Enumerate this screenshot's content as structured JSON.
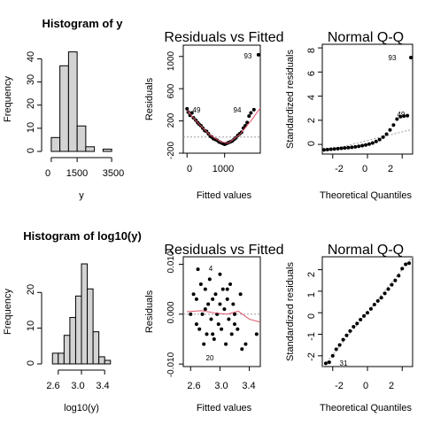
{
  "panels": {
    "hist_y": {
      "title": "Histogram of y",
      "xlabel": "y",
      "ylabel": "Frequency",
      "xticks": [
        "0",
        "1500",
        "3500"
      ],
      "yticks": [
        "0",
        "10",
        "20",
        "30",
        "40"
      ]
    },
    "rvf_1": {
      "title": "Residuals vs Fitted",
      "xlabel": "Fitted values",
      "ylabel": "Residuals",
      "xticks": [
        "0",
        "1000"
      ],
      "yticks": [
        "-200",
        "200",
        "600",
        "1000"
      ],
      "labels": [
        "93",
        "94",
        "49"
      ]
    },
    "qq_1": {
      "title": "Normal Q-Q",
      "xlabel": "Theoretical Quantiles",
      "ylabel": "Standardized residuals",
      "xticks": [
        "-2",
        "0",
        "2"
      ],
      "yticks": [
        "0",
        "2",
        "4",
        "6",
        "8"
      ],
      "labels": [
        "93",
        "49"
      ]
    },
    "hist_log": {
      "title": "Histogram of log10(y)",
      "xlabel": "log10(y)",
      "ylabel": "Frequency",
      "xticks": [
        "2.6",
        "3.0",
        "3.4"
      ],
      "yticks": [
        "0",
        "10",
        "20"
      ]
    },
    "rvf_2": {
      "title": "Residuals vs Fitted",
      "xlabel": "Fitted values",
      "ylabel": "Residuals",
      "xticks": [
        "2.6",
        "3.0",
        "3.4"
      ],
      "yticks": [
        "-0.010",
        "0.000",
        "0.010"
      ],
      "labels": [
        "4",
        "20"
      ]
    },
    "qq_2": {
      "title": "Normal Q-Q",
      "xlabel": "Theoretical Quantiles",
      "ylabel": "Standardized residuals",
      "xticks": [
        "-2",
        "0",
        "2"
      ],
      "yticks": [
        "-2",
        "-1",
        "0",
        "1",
        "2"
      ],
      "labels": [
        "31"
      ]
    }
  },
  "colors": {
    "bar_fill": "#d3d3d3",
    "smooth_line": "#df536b",
    "reference_line": "#9e9e9e",
    "points": "#000000"
  },
  "chart_data": [
    {
      "type": "bar",
      "title": "Histogram of y",
      "xlabel": "y",
      "ylabel": "Frequency",
      "bin_edges": [
        0,
        500,
        1000,
        1500,
        2000,
        2500,
        3000,
        3500
      ],
      "values": [
        6,
        37,
        43,
        11,
        2,
        0,
        1
      ],
      "xlim": [
        -200,
        3700
      ],
      "ylim": [
        0,
        44
      ]
    },
    {
      "type": "scatter",
      "title": "Residuals vs Fitted",
      "xlabel": "Fitted values",
      "ylabel": "Residuals",
      "xlim": [
        -100,
        1950
      ],
      "ylim": [
        -200,
        1140
      ],
      "x": [
        0,
        30,
        80,
        130,
        170,
        230,
        280,
        320,
        370,
        420,
        470,
        520,
        570,
        620,
        660,
        700,
        750,
        800,
        850,
        900,
        950,
        1000,
        1050,
        1100,
        1150,
        1200,
        1250,
        1300,
        1350,
        1400,
        1450,
        1500,
        1550,
        1600,
        1650,
        1700,
        1780,
        1900
      ],
      "y": [
        350,
        310,
        270,
        300,
        240,
        210,
        180,
        160,
        140,
        110,
        80,
        70,
        40,
        10,
        0,
        -20,
        -30,
        -40,
        -60,
        -70,
        -80,
        -90,
        -80,
        -70,
        -60,
        -50,
        -30,
        -10,
        20,
        40,
        60,
        110,
        140,
        180,
        260,
        300,
        340,
        1020
      ],
      "reference_y": 0,
      "smooth": {
        "x": [
          0,
          300,
          600,
          900,
          1100,
          1400,
          1700,
          1950
        ],
        "y": [
          330,
          170,
          30,
          -60,
          -75,
          30,
          200,
          360
        ]
      },
      "labeled_points": [
        {
          "label": "93",
          "x": 1900,
          "y": 1020
        },
        {
          "label": "94",
          "x": 1780,
          "y": 340
        },
        {
          "label": "49",
          "x": 30,
          "y": 310
        }
      ]
    },
    {
      "type": "scatter",
      "title": "Normal Q-Q",
      "xlabel": "Theoretical Quantiles",
      "ylabel": "Standardized residuals",
      "xlim": [
        -2.6,
        2.6
      ],
      "ylim": [
        -0.8,
        8.3
      ],
      "x": [
        -2.5,
        -2.3,
        -2.1,
        -1.9,
        -1.7,
        -1.5,
        -1.3,
        -1.1,
        -0.9,
        -0.7,
        -0.5,
        -0.3,
        -0.1,
        0.1,
        0.3,
        0.5,
        0.7,
        0.9,
        1.1,
        1.3,
        1.5,
        1.7,
        1.9,
        2.1,
        2.3,
        2.5
      ],
      "y": [
        -0.45,
        -0.42,
        -0.4,
        -0.38,
        -0.35,
        -0.32,
        -0.3,
        -0.27,
        -0.24,
        -0.2,
        -0.16,
        -0.1,
        -0.05,
        0.03,
        0.12,
        0.25,
        0.4,
        0.6,
        0.85,
        1.2,
        1.6,
        2.1,
        2.3,
        2.35,
        2.38,
        7.2
      ],
      "reference_line": {
        "x": [
          -2.6,
          2.6
        ],
        "y": [
          -0.6,
          1.25
        ]
      },
      "labeled_points": [
        {
          "label": "93",
          "x": 2.5,
          "y": 7.2
        },
        {
          "label": "49",
          "x": 2.35,
          "y": 2.38
        }
      ]
    },
    {
      "type": "bar",
      "title": "Histogram of log10(y)",
      "xlabel": "log10(y)",
      "ylabel": "Frequency",
      "bin_edges": [
        2.5,
        2.6,
        2.7,
        2.8,
        2.9,
        3.0,
        3.1,
        3.2,
        3.3,
        3.4,
        3.5
      ],
      "values": [
        3,
        3,
        8,
        13,
        19,
        28,
        21,
        9,
        2,
        1
      ],
      "xlim": [
        2.42,
        3.58
      ],
      "ylim": [
        0,
        28.5
      ]
    },
    {
      "type": "scatter",
      "title": "Residuals vs Fitted",
      "xlabel": "Fitted values",
      "ylabel": "Residuals",
      "xlim": [
        2.5,
        3.55
      ],
      "ylim": [
        -0.0105,
        0.0115
      ],
      "x": [
        2.6,
        2.64,
        2.68,
        2.7,
        2.72,
        2.74,
        2.76,
        2.78,
        2.8,
        2.82,
        2.84,
        2.86,
        2.88,
        2.9,
        2.92,
        2.94,
        2.96,
        2.98,
        3.0,
        3.02,
        3.04,
        3.06,
        3.08,
        3.1,
        3.12,
        3.14,
        3.16,
        3.18,
        3.2,
        3.24,
        3.28,
        3.3,
        3.35,
        3.5,
        2.68,
        2.8,
        2.9,
        3.0,
        3.1,
        3.2
      ],
      "y": [
        0.0,
        0.004,
        -0.002,
        0.009,
        -0.003,
        0.006,
        0.0,
        -0.006,
        0.005,
        -0.004,
        0.002,
        0.007,
        -0.001,
        0.003,
        -0.005,
        0.004,
        0.0,
        -0.002,
        0.008,
        -0.003,
        0.005,
        0.001,
        -0.006,
        0.003,
        -0.001,
        0.006,
        -0.004,
        0.002,
        0.0,
        -0.003,
        0.004,
        -0.007,
        -0.006,
        -0.004,
        0.003,
        0.001,
        -0.004,
        0.002,
        0.005,
        -0.002
      ],
      "reference_y": 0,
      "smooth": {
        "x": [
          2.55,
          2.75,
          2.95,
          3.1,
          3.25,
          3.4,
          3.55
        ],
        "y": [
          0.0005,
          0.0007,
          0.0002,
          0.0,
          0.0006,
          -0.001,
          -0.0016
        ]
      },
      "labeled_points": [
        {
          "label": "4",
          "x": 2.77,
          "y": 0.0085
        },
        {
          "label": "20",
          "x": 2.7,
          "y": -0.0082
        }
      ]
    },
    {
      "type": "scatter",
      "title": "Normal Q-Q",
      "xlabel": "Theoretical Quantiles",
      "ylabel": "Standardized residuals",
      "xlim": [
        -2.6,
        2.6
      ],
      "ylim": [
        -2.5,
        2.6
      ],
      "x": [
        -2.4,
        -2.2,
        -2.0,
        -1.8,
        -1.6,
        -1.4,
        -1.2,
        -1.0,
        -0.8,
        -0.6,
        -0.4,
        -0.2,
        0.0,
        0.2,
        0.4,
        0.6,
        0.8,
        1.0,
        1.2,
        1.4,
        1.6,
        1.8,
        2.0,
        2.2,
        2.4
      ],
      "y": [
        -2.35,
        -2.3,
        -2.0,
        -1.7,
        -1.5,
        -1.25,
        -1.05,
        -0.85,
        -0.65,
        -0.5,
        -0.32,
        -0.15,
        0.0,
        0.18,
        0.38,
        0.55,
        0.7,
        0.9,
        1.1,
        1.3,
        1.5,
        1.72,
        2.05,
        2.25,
        2.3
      ],
      "reference_line": {
        "x": [
          -2.6,
          2.6
        ],
        "y": [
          -2.55,
          2.6
        ]
      },
      "labeled_points": [
        {
          "label": "31",
          "x": -2.3,
          "y": -2.3
        }
      ]
    }
  ]
}
